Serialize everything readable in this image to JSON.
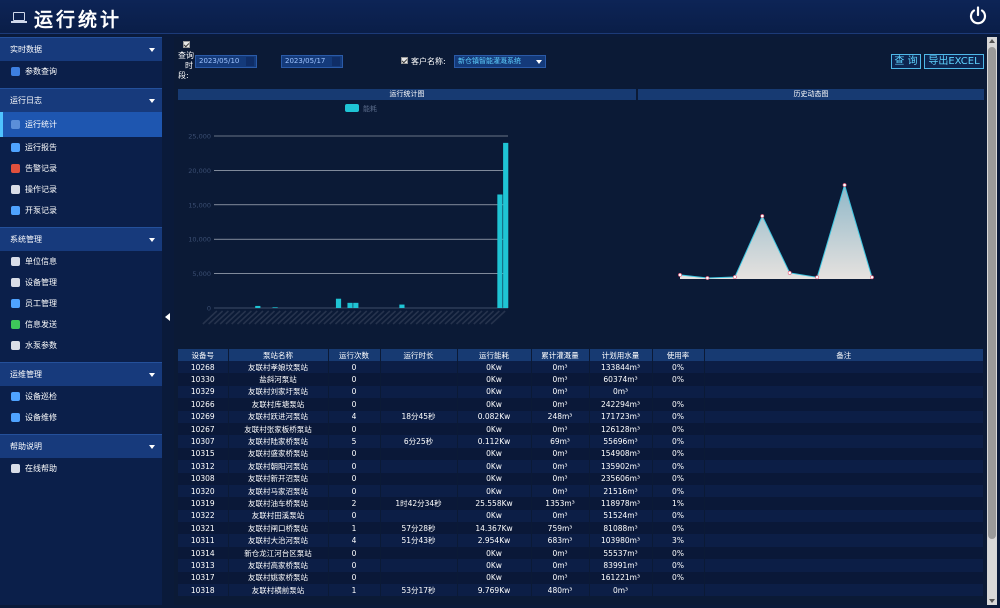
{
  "app": {
    "title": "运行统计"
  },
  "sidebar": {
    "sections": [
      {
        "label": "实时数据",
        "items": [
          {
            "label": "参数查询",
            "icon": "params-icon",
            "color": "#3d7fe0"
          }
        ]
      },
      {
        "label": "运行日志",
        "items": [
          {
            "label": "运行统计",
            "icon": "stats-icon",
            "color": "#5b8fd9",
            "active": true
          },
          {
            "label": "运行报告",
            "icon": "report-icon",
            "color": "#4fa3ff"
          },
          {
            "label": "告警记录",
            "icon": "alarm-icon",
            "color": "#e0503d"
          },
          {
            "label": "操作记录",
            "icon": "operation-icon",
            "color": "#d9dde8"
          },
          {
            "label": "开泵记录",
            "icon": "pump-log-icon",
            "color": "#4fa3ff"
          }
        ]
      },
      {
        "label": "系统管理",
        "items": [
          {
            "label": "单位信息",
            "icon": "unit-icon",
            "color": "#d9dde8"
          },
          {
            "label": "设备管理",
            "icon": "device-icon",
            "color": "#d9dde8"
          },
          {
            "label": "员工管理",
            "icon": "staff-icon",
            "color": "#4fa3ff"
          },
          {
            "label": "信息发送",
            "icon": "message-icon",
            "color": "#3ec85a"
          },
          {
            "label": "水泵参数",
            "icon": "pump-param-icon",
            "color": "#d9dde8"
          }
        ]
      },
      {
        "label": "运维管理",
        "items": [
          {
            "label": "设备巡检",
            "icon": "inspect-icon",
            "color": "#4fa3ff"
          },
          {
            "label": "设备维修",
            "icon": "repair-icon",
            "color": "#4fa3ff"
          }
        ]
      },
      {
        "label": "帮助说明",
        "items": [
          {
            "label": "在线帮助",
            "icon": "help-icon",
            "color": "#d9dde8"
          }
        ]
      }
    ]
  },
  "query": {
    "period_label_1": "查询",
    "period_label_2": "时",
    "period_label_3": "段:",
    "start_date": "2023/05/10",
    "end_date": "2023/05/17",
    "customer_label": "客户名称:",
    "customer_value": "新仓镇智能灌溉系统",
    "query_button": "查 询",
    "export_button": "导出EXCEL"
  },
  "panels": {
    "left_title": "运行统计图",
    "right_title": "历史动态图",
    "legend": "能耗"
  },
  "chart_data": [
    {
      "type": "bar",
      "title": "运行统计图",
      "legend": [
        "能耗"
      ],
      "y_ticks": [
        "0",
        "5,000",
        "10,000",
        "15,000",
        "20,000",
        "25,000"
      ],
      "ylim": [
        0,
        25000
      ],
      "series": [
        {
          "name": "能耗",
          "color": "#1fc4d4",
          "values": [
            0,
            0,
            0,
            0,
            0,
            0,
            0,
            300,
            0,
            0,
            100,
            0,
            0,
            0,
            0,
            0,
            0,
            0,
            0,
            0,
            0,
            1350,
            0,
            750,
            750,
            0,
            0,
            0,
            0,
            0,
            0,
            0,
            500,
            0,
            0,
            0,
            0,
            0,
            0,
            0,
            0,
            0,
            0,
            0,
            0,
            0,
            0,
            0,
            0,
            16500,
            24000
          ]
        }
      ]
    },
    {
      "type": "area",
      "title": "历史动态图",
      "values": [
        0.9,
        0.0,
        0.3,
        18.0,
        1.5,
        0.2,
        27.0,
        0.2
      ]
    }
  ],
  "table": {
    "headers": [
      "设备号",
      "泵站名称",
      "运行次数",
      "运行时长",
      "运行能耗",
      "累计灌溉量",
      "计划用水量",
      "使用率",
      "备注"
    ],
    "rows": [
      [
        "10268",
        "友联村孝娘坟泵站",
        "0",
        "",
        "0Kw",
        "0m³",
        "133844m³",
        "0%",
        ""
      ],
      [
        "10330",
        "盐斜河泵站",
        "0",
        "",
        "0Kw",
        "0m³",
        "60374m³",
        "0%",
        ""
      ],
      [
        "10329",
        "友联村刘家圩泵站",
        "0",
        "",
        "0Kw",
        "0m³",
        "0m³",
        "",
        ""
      ],
      [
        "10266",
        "友联村库塘泵站",
        "0",
        "",
        "0Kw",
        "0m³",
        "242294m³",
        "0%",
        ""
      ],
      [
        "10269",
        "友联村跃进河泵站",
        "4",
        "18分45秒",
        "0.082Kw",
        "248m³",
        "171723m³",
        "0%",
        ""
      ],
      [
        "10267",
        "友联村张家板桥泵站",
        "0",
        "",
        "0Kw",
        "0m³",
        "126128m³",
        "0%",
        ""
      ],
      [
        "10307",
        "友联村陆家桥泵站",
        "5",
        "6分25秒",
        "0.112Kw",
        "69m³",
        "55696m³",
        "0%",
        ""
      ],
      [
        "10315",
        "友联村盛家桥泵站",
        "0",
        "",
        "0Kw",
        "0m³",
        "154908m³",
        "0%",
        ""
      ],
      [
        "10312",
        "友联村朝阳河泵站",
        "0",
        "",
        "0Kw",
        "0m³",
        "135902m³",
        "0%",
        ""
      ],
      [
        "10308",
        "友联村新开沼泵站",
        "0",
        "",
        "0Kw",
        "0m³",
        "235606m³",
        "0%",
        ""
      ],
      [
        "10320",
        "友联村马家沼泵站",
        "0",
        "",
        "0Kw",
        "0m³",
        "21516m³",
        "0%",
        ""
      ],
      [
        "10319",
        "友联村油车桥泵站",
        "2",
        "1时42分34秒",
        "25.558Kw",
        "1353m³",
        "118978m³",
        "1%",
        ""
      ],
      [
        "10322",
        "友联村田溪泵站",
        "0",
        "",
        "0Kw",
        "0m³",
        "51524m³",
        "0%",
        ""
      ],
      [
        "10321",
        "友联村闸口桥泵站",
        "1",
        "57分28秒",
        "14.367Kw",
        "759m³",
        "81088m³",
        "0%",
        ""
      ],
      [
        "10311",
        "友联村大治河泵站",
        "4",
        "51分43秒",
        "2.954Kw",
        "683m³",
        "103980m³",
        "3%",
        ""
      ],
      [
        "10314",
        "新仓龙江河台区泵站",
        "0",
        "",
        "0Kw",
        "0m³",
        "55537m³",
        "0%",
        ""
      ],
      [
        "10313",
        "友联村高家桥泵站",
        "0",
        "",
        "0Kw",
        "0m³",
        "83991m³",
        "0%",
        ""
      ],
      [
        "10317",
        "友联村姚家桥泵站",
        "0",
        "",
        "0Kw",
        "0m³",
        "161221m³",
        "0%",
        ""
      ],
      [
        "10318",
        "友联村横前泵站",
        "1",
        "53分17秒",
        "9.769Kw",
        "480m³",
        "0m³",
        "",
        ""
      ]
    ]
  }
}
